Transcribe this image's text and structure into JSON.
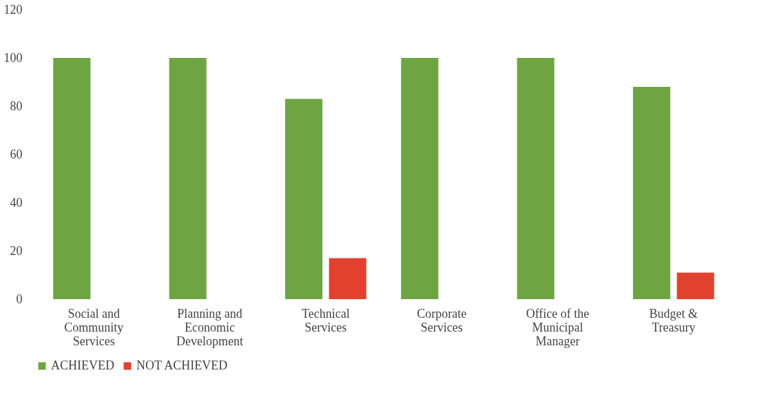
{
  "chart_data": {
    "type": "bar",
    "categories": [
      "Social and Community Services",
      "Planning and Economic Development",
      "Technical Services",
      "Corporate Services",
      "Office of the Municipal Manager",
      "Budget & Treasury"
    ],
    "series": [
      {
        "name": "ACHIEVED",
        "color": "#6fa443",
        "values": [
          100,
          100,
          83,
          100,
          100,
          88
        ]
      },
      {
        "name": "NOT ACHIEVED",
        "color": "#e2412f",
        "values": [
          0,
          0,
          17,
          0,
          0,
          11
        ]
      }
    ],
    "ylim": [
      0,
      120
    ],
    "yticks": [
      0,
      20,
      40,
      60,
      80,
      100,
      120
    ],
    "grid": false,
    "legend": "bottom"
  }
}
